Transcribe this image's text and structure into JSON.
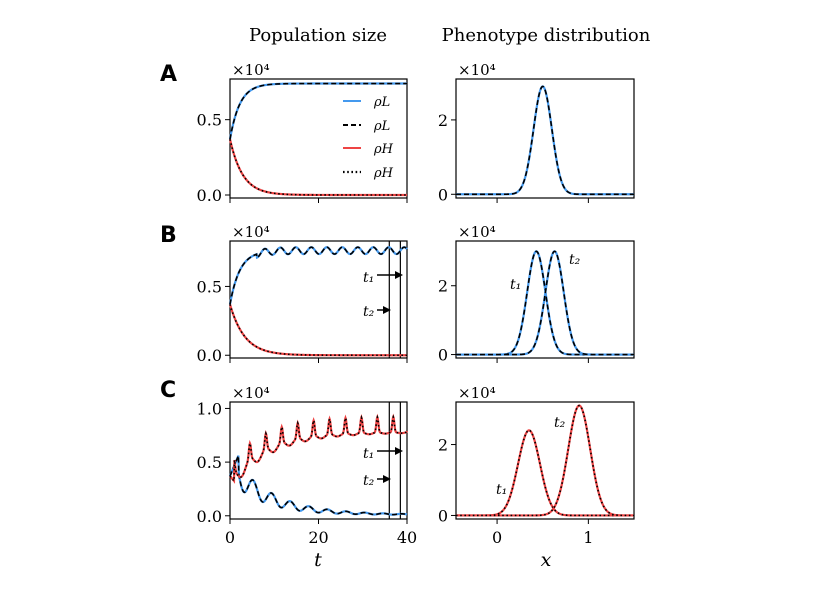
{
  "column_titles": {
    "left": "Population size",
    "right": "Phenotype distribution"
  },
  "panel_labels": [
    "A",
    "B",
    "C"
  ],
  "scale_factor": "×10⁴",
  "x_labels": {
    "time": "t",
    "phenotype": "x"
  },
  "markers": {
    "t1": "t₁",
    "t2": "t₂"
  },
  "legend": [
    {
      "label": "ρL",
      "style": "solid",
      "color": "#4499ee"
    },
    {
      "label": "ρL",
      "style": "dashed",
      "color": "#000000"
    },
    {
      "label": "ρH",
      "style": "solid",
      "color": "#ee4444"
    },
    {
      "label": "ρH",
      "style": "dotted",
      "color": "#000000"
    }
  ],
  "colors": {
    "blue": "#4499ee",
    "red": "#ee4444",
    "black": "#000000"
  },
  "chart_data": [
    {
      "id": "A-pop",
      "type": "line",
      "title": "Population size",
      "xlim": [
        0,
        40
      ],
      "ylim": [
        -0.02,
        0.77
      ],
      "yticks": [
        0.0,
        0.5
      ],
      "ytick_labels": [
        "0.0",
        "0.5"
      ],
      "series": [
        {
          "name": "ρL",
          "model": "logistic",
          "start": 0.37,
          "end": 0.74,
          "rate": 0.45
        },
        {
          "name": "ρH",
          "model": "decay",
          "start": 0.37,
          "end": 0.0,
          "rate": 0.35
        }
      ]
    },
    {
      "id": "A-pheno",
      "type": "line",
      "title": "Phenotype distribution",
      "xlim": [
        -0.45,
        1.5
      ],
      "ylim": [
        -0.1,
        3.1
      ],
      "yticks": [
        0,
        2
      ],
      "ytick_labels": [
        "0",
        "2"
      ],
      "xticks": [
        0,
        1
      ],
      "series": [
        {
          "name": "blue",
          "model": "gauss",
          "peak": 2.9,
          "center": 0.5,
          "width": 0.1
        }
      ]
    },
    {
      "id": "B-pop",
      "type": "line",
      "xlim": [
        0,
        40
      ],
      "ylim": [
        -0.02,
        0.83
      ],
      "yticks": [
        0.0,
        0.5
      ],
      "ytick_labels": [
        "0.0",
        "0.5"
      ],
      "vlines": [
        36,
        38.5
      ],
      "series": [
        {
          "name": "ρL",
          "model": "logistic-osc",
          "start": 0.37,
          "end": 0.76,
          "rate": 0.45,
          "osc_amp": 0.025,
          "osc_period": 3.5
        },
        {
          "name": "ρH",
          "model": "decay",
          "start": 0.37,
          "end": 0.0,
          "rate": 0.3
        }
      ]
    },
    {
      "id": "B-pheno",
      "type": "line",
      "xlim": [
        -0.45,
        1.5
      ],
      "ylim": [
        -0.1,
        3.3
      ],
      "yticks": [
        0,
        2
      ],
      "ytick_labels": [
        "0",
        "2"
      ],
      "xticks": [
        0,
        1
      ],
      "series": [
        {
          "name": "t1",
          "model": "gauss",
          "peak": 3.0,
          "center": 0.43,
          "width": 0.1
        },
        {
          "name": "t2",
          "model": "gauss",
          "peak": 3.0,
          "center": 0.63,
          "width": 0.1
        }
      ]
    },
    {
      "id": "C-pop",
      "type": "line",
      "xlim": [
        0,
        40
      ],
      "ylim": [
        -0.03,
        1.06
      ],
      "yticks": [
        0.0,
        0.5,
        1.0
      ],
      "ytick_labels": [
        "0.0",
        "0.5",
        "1.0"
      ],
      "vlines": [
        36,
        38.5
      ],
      "series": [
        {
          "name": "ρL",
          "model": "c-low"
        },
        {
          "name": "ρH",
          "model": "c-high"
        }
      ]
    },
    {
      "id": "C-pheno",
      "type": "line",
      "xlim": [
        -0.45,
        1.5
      ],
      "ylim": [
        -0.1,
        3.2
      ],
      "yticks": [
        0,
        2
      ],
      "ytick_labels": [
        "0",
        "2"
      ],
      "xticks": [
        0,
        1
      ],
      "xtick_labels": [
        "0",
        "1"
      ],
      "series": [
        {
          "name": "t1",
          "model": "gauss",
          "peak": 2.4,
          "center": 0.35,
          "width": 0.12
        },
        {
          "name": "t2",
          "model": "gauss",
          "peak": 3.1,
          "center": 0.9,
          "width": 0.12
        }
      ]
    }
  ],
  "time_ticks": [
    0,
    20,
    40
  ],
  "time_tick_labels": [
    "0",
    "20",
    "40"
  ],
  "pheno_tick_labels": [
    "0",
    "1"
  ]
}
